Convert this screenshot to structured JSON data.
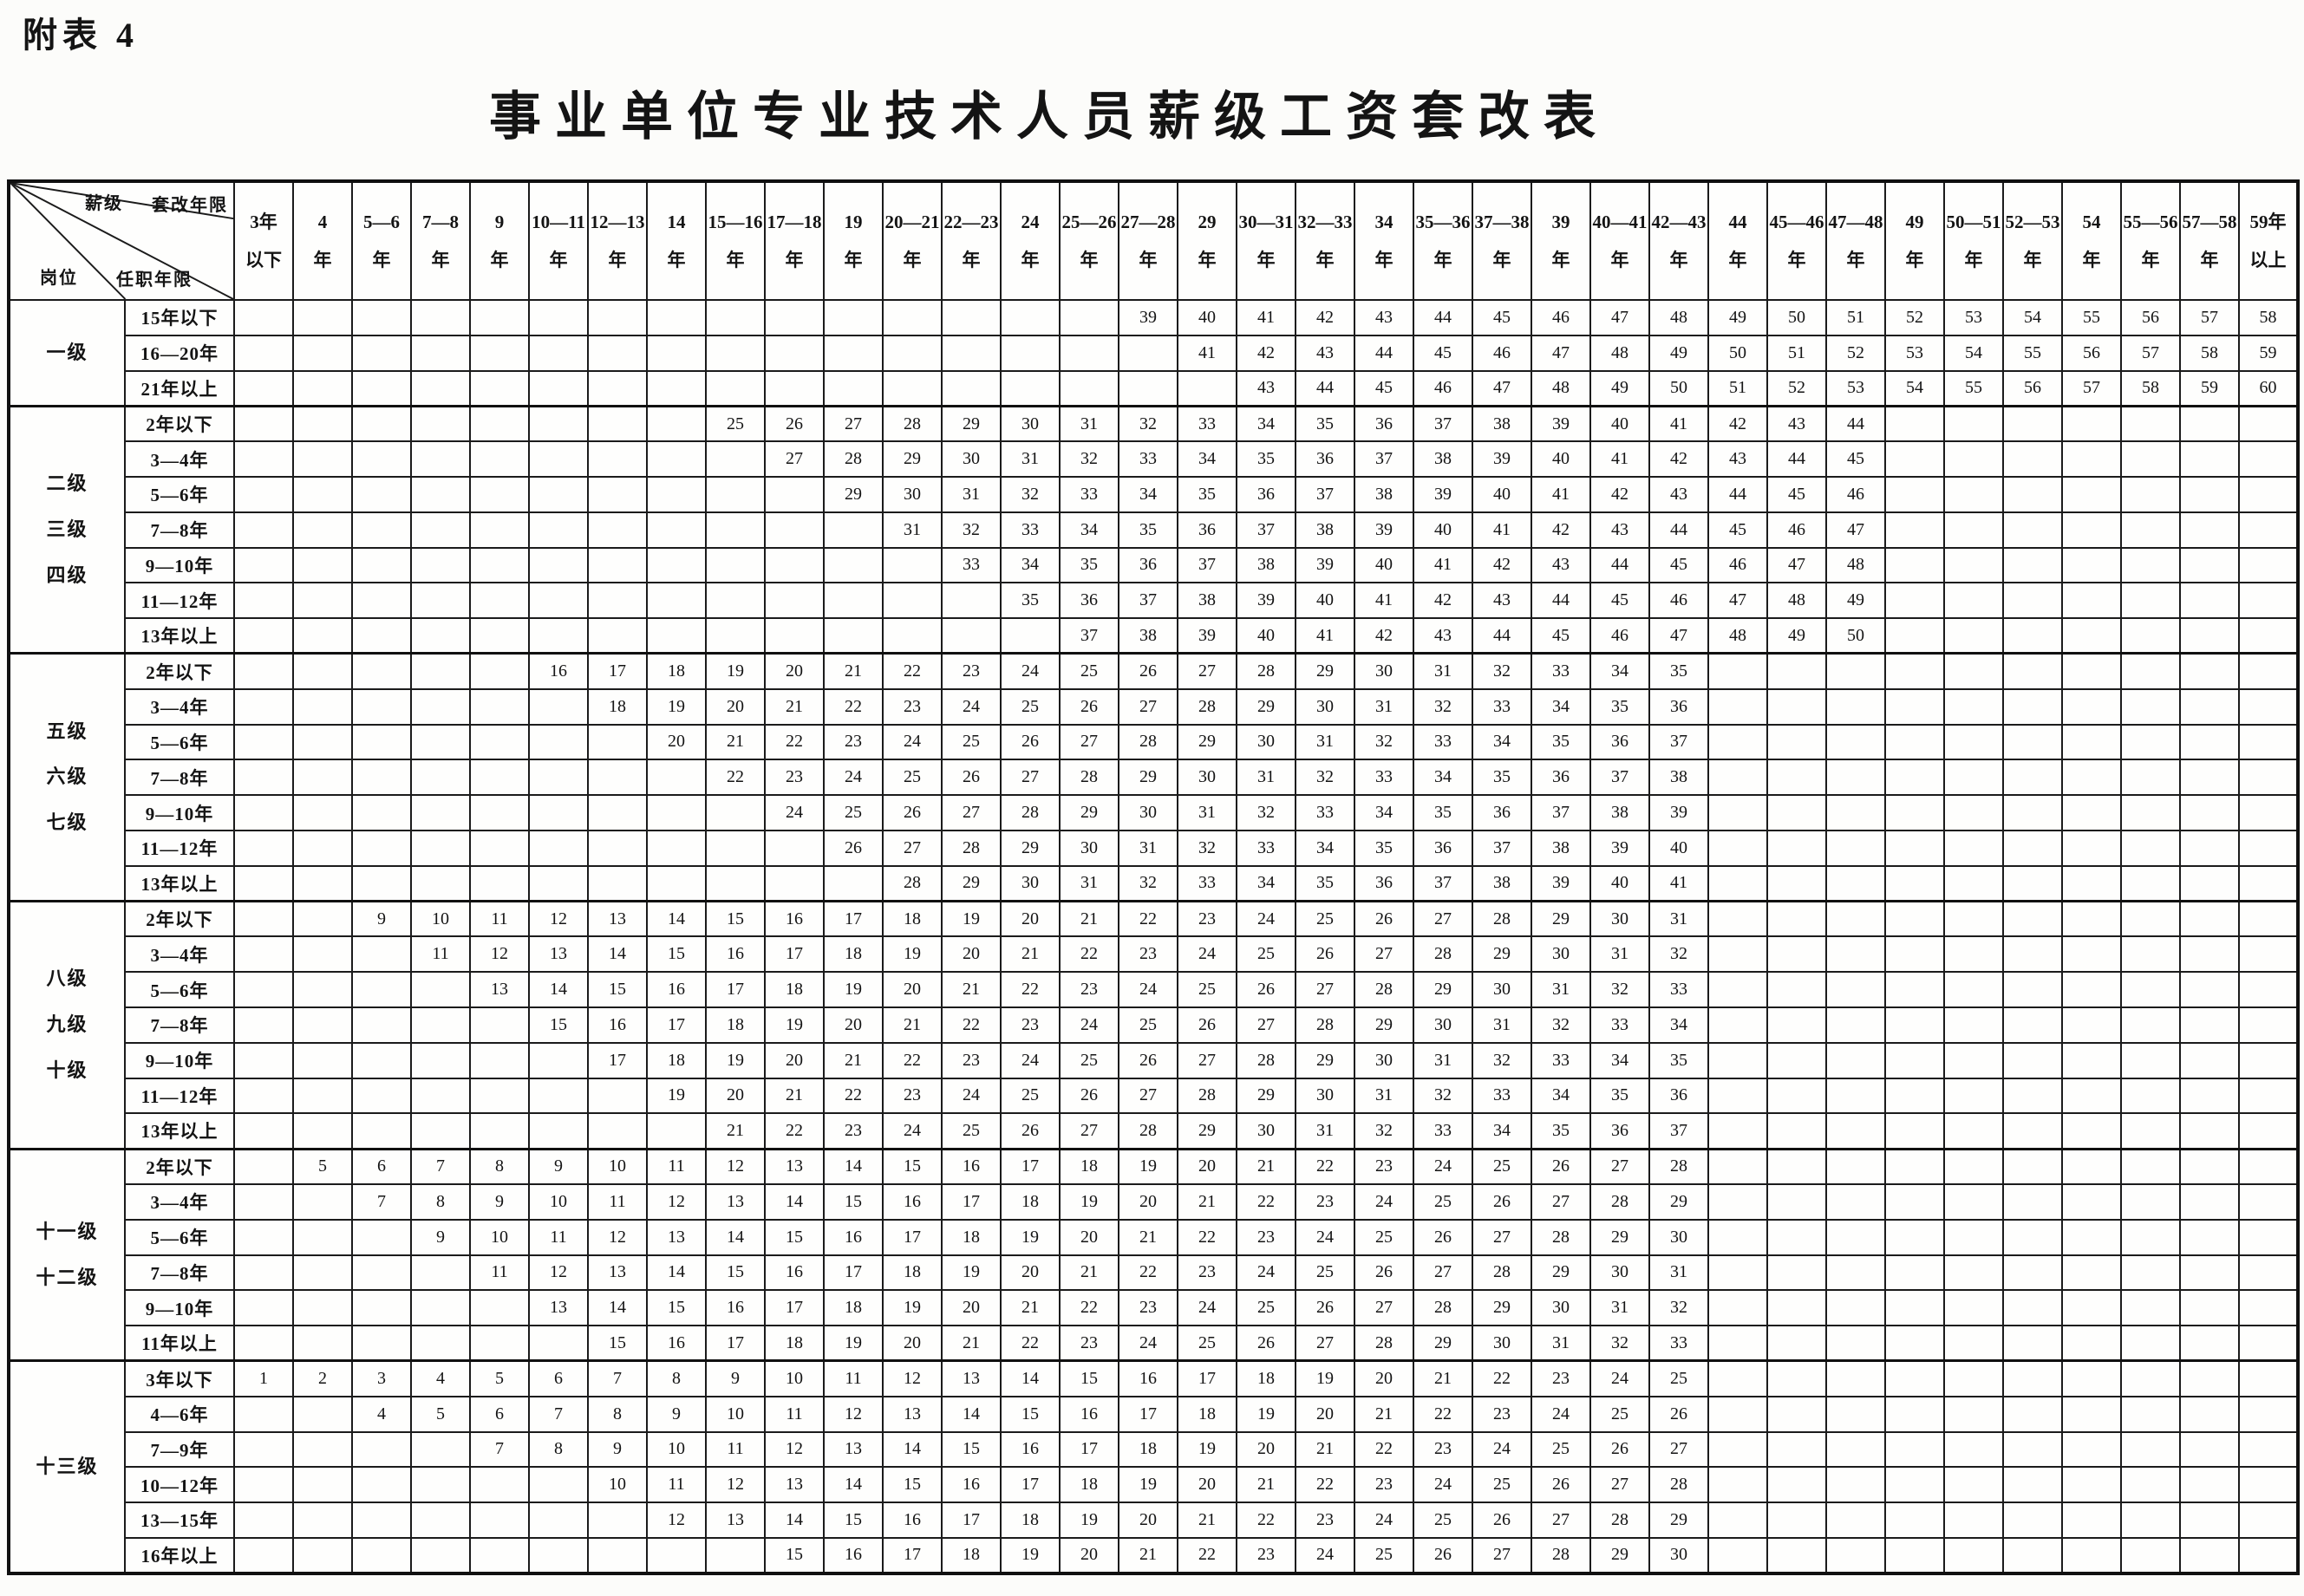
{
  "page": {
    "note": "附表 4",
    "title": "事业单位专业技术人员薪级工资套改表"
  },
  "corner": {
    "salary_grade": "薪级",
    "conversion_years": "套改年限",
    "post": "岗位",
    "tenure": "任职年限"
  },
  "columns": [
    [
      "3年",
      "以下"
    ],
    [
      "4",
      "年"
    ],
    [
      "5—6",
      "年"
    ],
    [
      "7—8",
      "年"
    ],
    [
      "9",
      "年"
    ],
    [
      "10—11",
      "年"
    ],
    [
      "12—13",
      "年"
    ],
    [
      "14",
      "年"
    ],
    [
      "15—16",
      "年"
    ],
    [
      "17—18",
      "年"
    ],
    [
      "19",
      "年"
    ],
    [
      "20—21",
      "年"
    ],
    [
      "22—23",
      "年"
    ],
    [
      "24",
      "年"
    ],
    [
      "25—26",
      "年"
    ],
    [
      "27—28",
      "年"
    ],
    [
      "29",
      "年"
    ],
    [
      "30—31",
      "年"
    ],
    [
      "32—33",
      "年"
    ],
    [
      "34",
      "年"
    ],
    [
      "35—36",
      "年"
    ],
    [
      "37—38",
      "年"
    ],
    [
      "39",
      "年"
    ],
    [
      "40—41",
      "年"
    ],
    [
      "42—43",
      "年"
    ],
    [
      "44",
      "年"
    ],
    [
      "45—46",
      "年"
    ],
    [
      "47—48",
      "年"
    ],
    [
      "49",
      "年"
    ],
    [
      "50—51",
      "年"
    ],
    [
      "52—53",
      "年"
    ],
    [
      "54",
      "年"
    ],
    [
      "55—56",
      "年"
    ],
    [
      "57—58",
      "年"
    ],
    [
      "59年",
      "以上"
    ]
  ],
  "groups": [
    {
      "label": [
        "一级"
      ],
      "rows": [
        {
          "label": "15年以下",
          "start": 16,
          "values": [
            39,
            40,
            41,
            42,
            43,
            44,
            45,
            46,
            47,
            48,
            49,
            50,
            51,
            52,
            53,
            54,
            55,
            56,
            57,
            58
          ]
        },
        {
          "label": "16—20年",
          "start": 17,
          "values": [
            41,
            42,
            43,
            44,
            45,
            46,
            47,
            48,
            49,
            50,
            51,
            52,
            53,
            54,
            55,
            56,
            57,
            58,
            59
          ]
        },
        {
          "label": "21年以上",
          "start": 18,
          "values": [
            43,
            44,
            45,
            46,
            47,
            48,
            49,
            50,
            51,
            52,
            53,
            54,
            55,
            56,
            57,
            58,
            59,
            60
          ]
        }
      ]
    },
    {
      "label": [
        "二级",
        "三级",
        "四级"
      ],
      "rows": [
        {
          "label": "2年以下",
          "start": 9,
          "values": [
            25,
            26,
            27,
            28,
            29,
            30,
            31,
            32,
            33,
            34,
            35,
            36,
            37,
            38,
            39,
            40,
            41,
            42,
            43,
            44
          ]
        },
        {
          "label": "3—4年",
          "start": 10,
          "values": [
            27,
            28,
            29,
            30,
            31,
            32,
            33,
            34,
            35,
            36,
            37,
            38,
            39,
            40,
            41,
            42,
            43,
            44,
            45
          ]
        },
        {
          "label": "5—6年",
          "start": 11,
          "values": [
            29,
            30,
            31,
            32,
            33,
            34,
            35,
            36,
            37,
            38,
            39,
            40,
            41,
            42,
            43,
            44,
            45,
            46
          ]
        },
        {
          "label": "7—8年",
          "start": 12,
          "values": [
            31,
            32,
            33,
            34,
            35,
            36,
            37,
            38,
            39,
            40,
            41,
            42,
            43,
            44,
            45,
            46,
            47
          ]
        },
        {
          "label": "9—10年",
          "start": 13,
          "values": [
            33,
            34,
            35,
            36,
            37,
            38,
            39,
            40,
            41,
            42,
            43,
            44,
            45,
            46,
            47,
            48
          ]
        },
        {
          "label": "11—12年",
          "start": 14,
          "values": [
            35,
            36,
            37,
            38,
            39,
            40,
            41,
            42,
            43,
            44,
            45,
            46,
            47,
            48,
            49
          ]
        },
        {
          "label": "13年以上",
          "start": 15,
          "values": [
            37,
            38,
            39,
            40,
            41,
            42,
            43,
            44,
            45,
            46,
            47,
            48,
            49,
            50
          ]
        }
      ]
    },
    {
      "label": [
        "五级",
        "六级",
        "七级"
      ],
      "rows": [
        {
          "label": "2年以下",
          "start": 6,
          "values": [
            16,
            17,
            18,
            19,
            20,
            21,
            22,
            23,
            24,
            25,
            26,
            27,
            28,
            29,
            30,
            31,
            32,
            33,
            34,
            35
          ]
        },
        {
          "label": "3—4年",
          "start": 7,
          "values": [
            18,
            19,
            20,
            21,
            22,
            23,
            24,
            25,
            26,
            27,
            28,
            29,
            30,
            31,
            32,
            33,
            34,
            35,
            36
          ]
        },
        {
          "label": "5—6年",
          "start": 8,
          "values": [
            20,
            21,
            22,
            23,
            24,
            25,
            26,
            27,
            28,
            29,
            30,
            31,
            32,
            33,
            34,
            35,
            36,
            37
          ]
        },
        {
          "label": "7—8年",
          "start": 9,
          "values": [
            22,
            23,
            24,
            25,
            26,
            27,
            28,
            29,
            30,
            31,
            32,
            33,
            34,
            35,
            36,
            37,
            38
          ]
        },
        {
          "label": "9—10年",
          "start": 10,
          "values": [
            24,
            25,
            26,
            27,
            28,
            29,
            30,
            31,
            32,
            33,
            34,
            35,
            36,
            37,
            38,
            39
          ]
        },
        {
          "label": "11—12年",
          "start": 11,
          "values": [
            26,
            27,
            28,
            29,
            30,
            31,
            32,
            33,
            34,
            35,
            36,
            37,
            38,
            39,
            40
          ]
        },
        {
          "label": "13年以上",
          "start": 12,
          "values": [
            28,
            29,
            30,
            31,
            32,
            33,
            34,
            35,
            36,
            37,
            38,
            39,
            40,
            41
          ]
        }
      ]
    },
    {
      "label": [
        "八级",
        "九级",
        "十级"
      ],
      "rows": [
        {
          "label": "2年以下",
          "start": 3,
          "values": [
            9,
            10,
            11,
            12,
            13,
            14,
            15,
            16,
            17,
            18,
            19,
            20,
            21,
            22,
            23,
            24,
            25,
            26,
            27,
            28,
            29,
            30,
            31
          ]
        },
        {
          "label": "3—4年",
          "start": 4,
          "values": [
            11,
            12,
            13,
            14,
            15,
            16,
            17,
            18,
            19,
            20,
            21,
            22,
            23,
            24,
            25,
            26,
            27,
            28,
            29,
            30,
            31,
            32
          ]
        },
        {
          "label": "5—6年",
          "start": 5,
          "values": [
            13,
            14,
            15,
            16,
            17,
            18,
            19,
            20,
            21,
            22,
            23,
            24,
            25,
            26,
            27,
            28,
            29,
            30,
            31,
            32,
            33
          ]
        },
        {
          "label": "7—8年",
          "start": 6,
          "values": [
            15,
            16,
            17,
            18,
            19,
            20,
            21,
            22,
            23,
            24,
            25,
            26,
            27,
            28,
            29,
            30,
            31,
            32,
            33,
            34
          ]
        },
        {
          "label": "9—10年",
          "start": 7,
          "values": [
            17,
            18,
            19,
            20,
            21,
            22,
            23,
            24,
            25,
            26,
            27,
            28,
            29,
            30,
            31,
            32,
            33,
            34,
            35
          ]
        },
        {
          "label": "11—12年",
          "start": 8,
          "values": [
            19,
            20,
            21,
            22,
            23,
            24,
            25,
            26,
            27,
            28,
            29,
            30,
            31,
            32,
            33,
            34,
            35,
            36
          ]
        },
        {
          "label": "13年以上",
          "start": 9,
          "values": [
            21,
            22,
            23,
            24,
            25,
            26,
            27,
            28,
            29,
            30,
            31,
            32,
            33,
            34,
            35,
            36,
            37
          ]
        }
      ]
    },
    {
      "label": [
        "十一级",
        "十二级"
      ],
      "rows": [
        {
          "label": "2年以下",
          "start": 2,
          "values": [
            5,
            6,
            7,
            8,
            9,
            10,
            11,
            12,
            13,
            14,
            15,
            16,
            17,
            18,
            19,
            20,
            21,
            22,
            23,
            24,
            25,
            26,
            27,
            28
          ]
        },
        {
          "label": "3—4年",
          "start": 3,
          "values": [
            7,
            8,
            9,
            10,
            11,
            12,
            13,
            14,
            15,
            16,
            17,
            18,
            19,
            20,
            21,
            22,
            23,
            24,
            25,
            26,
            27,
            28,
            29
          ]
        },
        {
          "label": "5—6年",
          "start": 4,
          "values": [
            9,
            10,
            11,
            12,
            13,
            14,
            15,
            16,
            17,
            18,
            19,
            20,
            21,
            22,
            23,
            24,
            25,
            26,
            27,
            28,
            29,
            30
          ]
        },
        {
          "label": "7—8年",
          "start": 5,
          "values": [
            11,
            12,
            13,
            14,
            15,
            16,
            17,
            18,
            19,
            20,
            21,
            22,
            23,
            24,
            25,
            26,
            27,
            28,
            29,
            30,
            31
          ]
        },
        {
          "label": "9—10年",
          "start": 6,
          "values": [
            13,
            14,
            15,
            16,
            17,
            18,
            19,
            20,
            21,
            22,
            23,
            24,
            25,
            26,
            27,
            28,
            29,
            30,
            31,
            32
          ]
        },
        {
          "label": "11年以上",
          "start": 7,
          "values": [
            15,
            16,
            17,
            18,
            19,
            20,
            21,
            22,
            23,
            24,
            25,
            26,
            27,
            28,
            29,
            30,
            31,
            32,
            33
          ]
        }
      ]
    },
    {
      "label": [
        "十三级"
      ],
      "rows": [
        {
          "label": "3年以下",
          "start": 1,
          "values": [
            1,
            2,
            3,
            4,
            5,
            6,
            7,
            8,
            9,
            10,
            11,
            12,
            13,
            14,
            15,
            16,
            17,
            18,
            19,
            20,
            21,
            22,
            23,
            24,
            25
          ]
        },
        {
          "label": "4—6年",
          "start": 3,
          "values": [
            4,
            5,
            6,
            7,
            8,
            9,
            10,
            11,
            12,
            13,
            14,
            15,
            16,
            17,
            18,
            19,
            20,
            21,
            22,
            23,
            24,
            25,
            26
          ]
        },
        {
          "label": "7—9年",
          "start": 5,
          "values": [
            7,
            8,
            9,
            10,
            11,
            12,
            13,
            14,
            15,
            16,
            17,
            18,
            19,
            20,
            21,
            22,
            23,
            24,
            25,
            26,
            27
          ]
        },
        {
          "label": "10—12年",
          "start": 7,
          "values": [
            10,
            11,
            12,
            13,
            14,
            15,
            16,
            17,
            18,
            19,
            20,
            21,
            22,
            23,
            24,
            25,
            26,
            27,
            28
          ]
        },
        {
          "label": "13—15年",
          "start": 8,
          "values": [
            12,
            13,
            14,
            15,
            16,
            17,
            18,
            19,
            20,
            21,
            22,
            23,
            24,
            25,
            26,
            27,
            28,
            29
          ]
        },
        {
          "label": "16年以上",
          "start": 10,
          "values": [
            15,
            16,
            17,
            18,
            19,
            20,
            21,
            22,
            23,
            24,
            25,
            26,
            27,
            28,
            29,
            30
          ]
        }
      ]
    }
  ]
}
